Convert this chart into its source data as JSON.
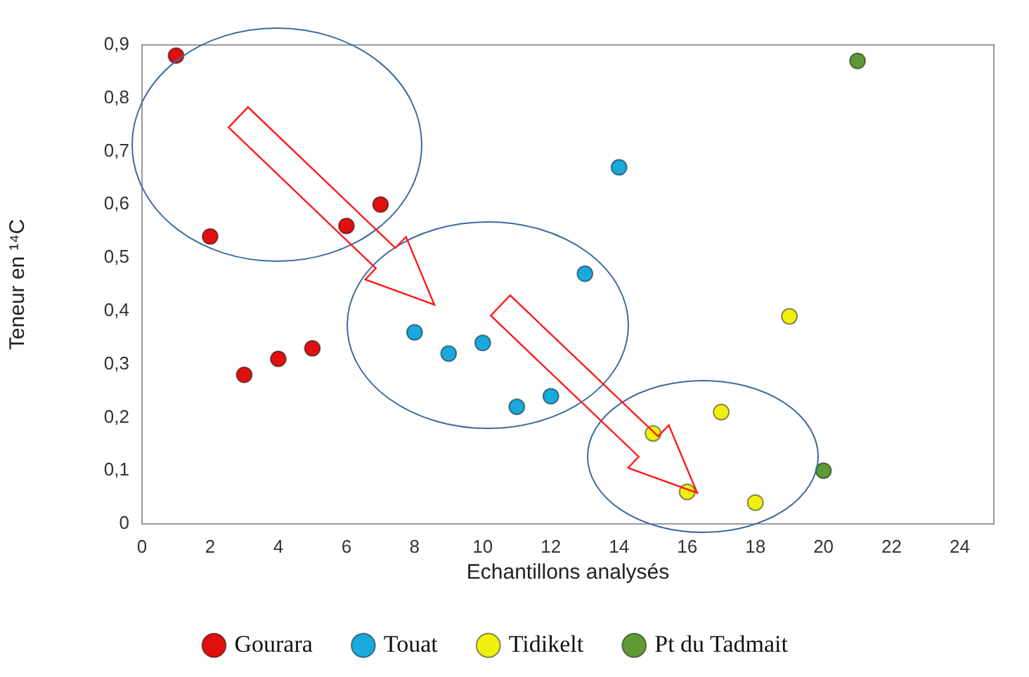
{
  "chart_data": {
    "type": "scatter",
    "xlabel": "Echantillons analysés",
    "ylabel": "Teneur en ¹⁴C",
    "xlim": [
      0,
      25
    ],
    "xticks": [
      0,
      2,
      4,
      6,
      8,
      10,
      12,
      14,
      16,
      18,
      20,
      22,
      24
    ],
    "ylim": [
      0,
      0.9
    ],
    "yticks": [
      0,
      {
        "value": 0.1,
        "label": "0,1"
      },
      {
        "value": 0.2,
        "label": "0,2"
      },
      {
        "value": 0.3,
        "label": "0,3"
      },
      {
        "value": 0.4,
        "label": "0,4"
      },
      {
        "value": 0.5,
        "label": "0,5"
      },
      {
        "value": 0.6,
        "label": "0,6"
      },
      {
        "value": 0.7,
        "label": "0,7"
      },
      {
        "value": 0.8,
        "label": "0,8"
      },
      {
        "value": 0.9,
        "label": "0,9"
      }
    ],
    "grid": false,
    "legend": "bottom",
    "marker": "circle",
    "series": [
      {
        "name": "Gourara",
        "color": "#e01010",
        "x": [
          1,
          2,
          3,
          4,
          5,
          6,
          7
        ],
        "values": [
          0.88,
          0.54,
          0.28,
          0.31,
          0.33,
          0.56,
          0.6
        ]
      },
      {
        "name": "Touat",
        "color": "#19a9dc",
        "x": [
          8,
          9,
          10,
          11,
          12,
          13,
          14
        ],
        "values": [
          0.36,
          0.32,
          0.34,
          0.22,
          0.24,
          0.47,
          0.67
        ]
      },
      {
        "name": "Tidikelt",
        "color": "#f0f010",
        "x": [
          15,
          16,
          17,
          18,
          19
        ],
        "values": [
          0.17,
          0.06,
          0.21,
          0.04,
          0.39
        ]
      },
      {
        "name": "Pt du Tadmait",
        "color": "#5e9a34",
        "x": [
          20,
          21
        ],
        "values": [
          0.1,
          0.87
        ]
      }
    ]
  }
}
